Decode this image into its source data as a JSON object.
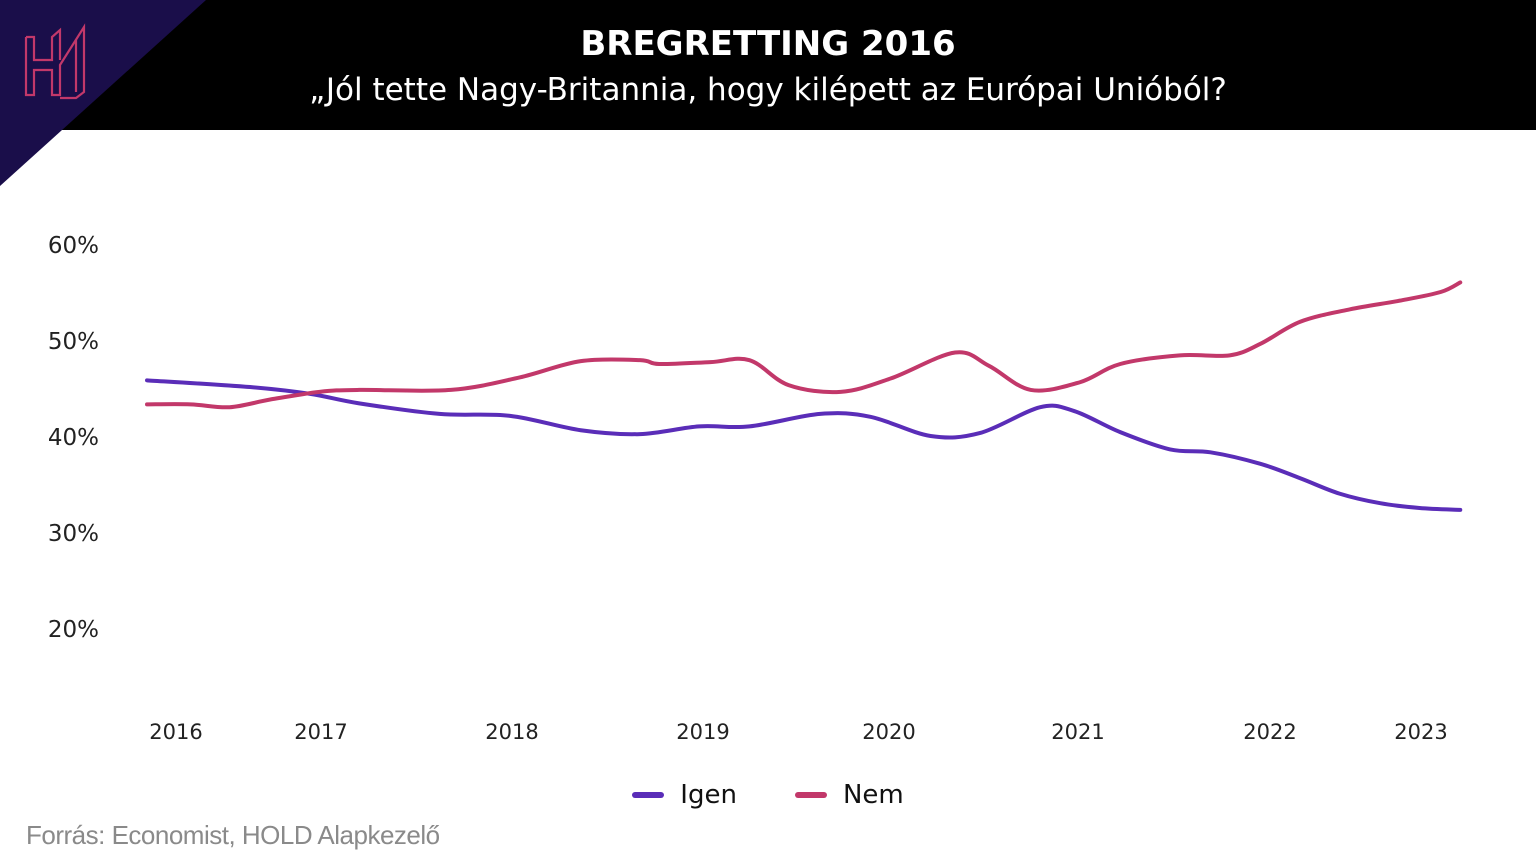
{
  "header": {
    "title": "BREGRETTING 2016",
    "subtitle": "„Jól tette Nagy-Britannia, hogy kilépett az Európai Unióból?",
    "logo": "HOLD H logo"
  },
  "source": "Forrás: Economist, HOLD Alapkezelő",
  "colors": {
    "igen": "#5a2db8",
    "nem": "#c2386a",
    "logo_bg": "#1a0e4a",
    "logo": "#c2386a"
  },
  "chart_data": {
    "type": "line",
    "title": "BREGRETTING 2016",
    "subtitle": "„Jól tette Nagy-Britannia, hogy kilépett az Európai Unióból?",
    "xlabel": "",
    "ylabel": "",
    "x_ticks": [
      2016,
      2017,
      2018,
      2019,
      2020,
      2021,
      2022,
      2023
    ],
    "x_tick_labels": [
      "2016",
      "2017",
      "2018",
      "2019",
      "2020",
      "2021",
      "2022",
      "2023"
    ],
    "y_ticks": [
      20,
      30,
      40,
      50,
      60
    ],
    "y_tick_labels": [
      "20%",
      "30%",
      "40%",
      "50%",
      "60%"
    ],
    "ylim": [
      10,
      60
    ],
    "grid": false,
    "legend": "bottom",
    "series": [
      {
        "name": "Igen",
        "color": "#5a2db8",
        "points": [
          [
            2015.8,
            45.8
          ],
          [
            2016.51,
            45.1
          ],
          [
            2016.92,
            44.4
          ],
          [
            2017.2,
            43.4
          ],
          [
            2017.62,
            42.3
          ],
          [
            2017.99,
            42.1
          ],
          [
            2018.36,
            40.6
          ],
          [
            2018.67,
            40.2
          ],
          [
            2018.98,
            41.0
          ],
          [
            2019.25,
            41.0
          ],
          [
            2019.63,
            42.3
          ],
          [
            2019.9,
            42.0
          ],
          [
            2020.22,
            40.0
          ],
          [
            2020.48,
            40.3
          ],
          [
            2020.8,
            43.0
          ],
          [
            2020.98,
            42.6
          ],
          [
            2021.22,
            40.4
          ],
          [
            2021.48,
            38.6
          ],
          [
            2021.69,
            38.3
          ],
          [
            2021.95,
            37.1
          ],
          [
            2022.2,
            35.6
          ],
          [
            2022.46,
            34.0
          ],
          [
            2022.73,
            33.0
          ],
          [
            2022.99,
            32.5
          ],
          [
            2023.26,
            32.3
          ]
        ]
      },
      {
        "name": "Nem",
        "color": "#c2386a",
        "points": [
          [
            2015.8,
            43.3
          ],
          [
            2016.1,
            43.3
          ],
          [
            2016.37,
            43.0
          ],
          [
            2016.65,
            43.8
          ],
          [
            2016.99,
            44.6
          ],
          [
            2017.2,
            44.8
          ],
          [
            2017.68,
            44.8
          ],
          [
            2018.04,
            46.1
          ],
          [
            2018.36,
            47.8
          ],
          [
            2018.67,
            47.9
          ],
          [
            2018.77,
            47.5
          ],
          [
            2019.04,
            47.7
          ],
          [
            2019.25,
            47.9
          ],
          [
            2019.46,
            45.3
          ],
          [
            2019.74,
            44.6
          ],
          [
            2020.01,
            46.0
          ],
          [
            2020.35,
            48.7
          ],
          [
            2020.53,
            47.3
          ],
          [
            2020.75,
            44.8
          ],
          [
            2021.01,
            45.6
          ],
          [
            2021.22,
            47.5
          ],
          [
            2021.53,
            48.4
          ],
          [
            2021.79,
            48.4
          ],
          [
            2021.95,
            49.6
          ],
          [
            2022.2,
            51.9
          ],
          [
            2022.53,
            53.2
          ],
          [
            2022.86,
            54.1
          ],
          [
            2023.13,
            55.0
          ],
          [
            2023.26,
            56.0
          ]
        ]
      }
    ]
  }
}
